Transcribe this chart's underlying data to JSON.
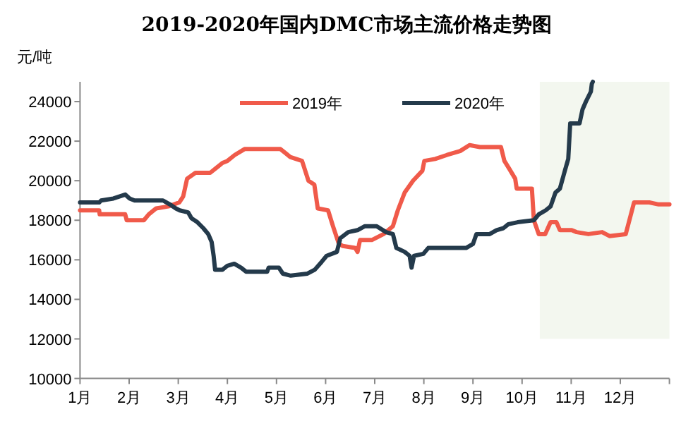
{
  "chart_data": {
    "type": "line",
    "title": "2019-2020年国内DMC市场主流价格走势图",
    "ylabel": "元/吨",
    "xlim": [
      1,
      13
    ],
    "xticks": [
      {
        "value": 1,
        "label": "1月"
      },
      {
        "value": 2,
        "label": "2月"
      },
      {
        "value": 3,
        "label": "3月"
      },
      {
        "value": 4,
        "label": "4月"
      },
      {
        "value": 5,
        "label": "5月"
      },
      {
        "value": 6,
        "label": "6月"
      },
      {
        "value": 7,
        "label": "7月"
      },
      {
        "value": 8,
        "label": "8月"
      },
      {
        "value": 9,
        "label": "9月"
      },
      {
        "value": 10,
        "label": "10月"
      },
      {
        "value": 11,
        "label": "11月"
      },
      {
        "value": 12,
        "label": "12月"
      },
      {
        "value": 13,
        "label": null
      }
    ],
    "ylim": [
      10000,
      25000
    ],
    "yticks": [
      10000,
      12000,
      14000,
      16000,
      18000,
      20000,
      22000,
      24000
    ],
    "legend": "top",
    "grid": false,
    "marker": "none",
    "line_style": "solid",
    "bands": [
      {
        "axis": "x",
        "from": 10.36,
        "to": 13,
        "color": "#f3f7ef"
      }
    ],
    "series": [
      {
        "name": "2019年",
        "color": "#f05a4a",
        "x": [
          1,
          1.39,
          1.4,
          1.92,
          1.95,
          2.3,
          2.4,
          2.55,
          2.8,
          3.02,
          3.1,
          3.18,
          3.35,
          3.65,
          3.8,
          3.9,
          4.0,
          4.15,
          4.35,
          5.08,
          5.18,
          5.28,
          5.52,
          5.65,
          5.77,
          5.84,
          6.05,
          6.15,
          6.27,
          6.35,
          6.6,
          6.65,
          6.7,
          6.94,
          7.18,
          7.37,
          7.47,
          7.61,
          7.78,
          7.97,
          8.01,
          8.23,
          8.47,
          8.74,
          8.93,
          9.14,
          9.57,
          9.64,
          9.74,
          9.86,
          9.89,
          10.2,
          10.24,
          10.34,
          10.47,
          10.58,
          10.7,
          10.77,
          11.01,
          11.11,
          11.35,
          11.63,
          11.78,
          12.11,
          12.28,
          12.59,
          12.78,
          13
        ],
        "values": [
          18500,
          18500,
          18300,
          18300,
          18000,
          18000,
          18300,
          18600,
          18700,
          18900,
          19200,
          20100,
          20400,
          20400,
          20700,
          20900,
          21000,
          21300,
          21600,
          21600,
          21400,
          21200,
          21000,
          20000,
          19800,
          18600,
          18500,
          17700,
          16800,
          16700,
          16600,
          16400,
          17000,
          17000,
          17300,
          17700,
          18500,
          19400,
          20000,
          20500,
          21000,
          21100,
          21300,
          21500,
          21800,
          21700,
          21700,
          21000,
          20600,
          20100,
          19600,
          19600,
          18000,
          17300,
          17300,
          17900,
          17900,
          17500,
          17500,
          17400,
          17300,
          17400,
          17200,
          17300,
          18900,
          18900,
          18800,
          18800
        ]
      },
      {
        "name": "2020年",
        "color": "#243a4b",
        "x": [
          1,
          1.39,
          1.43,
          1.68,
          1.92,
          2.01,
          2.11,
          2.55,
          2.69,
          2.83,
          2.95,
          3.03,
          3.2,
          3.27,
          3.39,
          3.51,
          3.61,
          3.68,
          3.72,
          3.75,
          3.9,
          4.0,
          4.14,
          4.28,
          4.38,
          4.81,
          4.84,
          5.05,
          5.13,
          5.29,
          5.63,
          5.78,
          5.92,
          6.02,
          6.23,
          6.3,
          6.46,
          6.65,
          6.8,
          7.04,
          7.23,
          7.37,
          7.44,
          7.61,
          7.71,
          7.75,
          7.8,
          7.99,
          8.09,
          8.57,
          8.86,
          9.0,
          9.07,
          9.34,
          9.48,
          9.62,
          9.72,
          9.91,
          10.24,
          10.34,
          10.48,
          10.58,
          10.68,
          10.77,
          10.87,
          10.94,
          10.98,
          11.17,
          11.23,
          11.3,
          11.4,
          11.42,
          11.44
        ],
        "values": [
          18900,
          18900,
          19000,
          19100,
          19300,
          19100,
          19000,
          19000,
          19000,
          18800,
          18600,
          18500,
          18400,
          18100,
          17900,
          17600,
          17300,
          16900,
          16200,
          15500,
          15500,
          15700,
          15800,
          15600,
          15400,
          15400,
          15600,
          15600,
          15300,
          15200,
          15300,
          15500,
          15900,
          16200,
          16400,
          17100,
          17400,
          17500,
          17700,
          17700,
          17400,
          17300,
          16600,
          16400,
          16200,
          15600,
          16200,
          16300,
          16600,
          16600,
          16600,
          16800,
          17300,
          17300,
          17500,
          17600,
          17800,
          17900,
          18000,
          18300,
          18500,
          18700,
          19400,
          19600,
          20500,
          21100,
          22900,
          22900,
          23600,
          24000,
          24500,
          24900,
          25000
        ]
      }
    ]
  }
}
